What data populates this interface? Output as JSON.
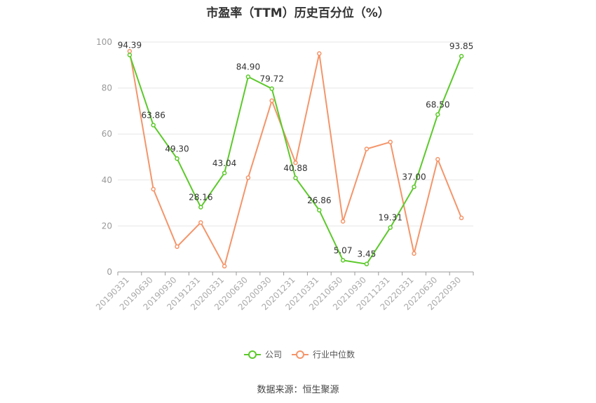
{
  "chart_data": {
    "type": "line",
    "title": "市盈率（TTM）历史百分位（%）",
    "categories": [
      "20190331",
      "20190630",
      "20190930",
      "20191231",
      "20200331",
      "20200630",
      "20200930",
      "20201231",
      "20210331",
      "20210630",
      "20210930",
      "20211231",
      "20220331",
      "20220630",
      "20220930"
    ],
    "series": [
      {
        "name": "公司",
        "color": "#5cc92b",
        "values": [
          94.39,
          63.86,
          49.3,
          28.16,
          43.04,
          84.9,
          79.72,
          40.88,
          26.86,
          5.07,
          3.45,
          19.31,
          37.0,
          68.5,
          93.85
        ],
        "labels": [
          "94.39",
          "63.86",
          "49.30",
          "28.16",
          "43.04",
          "84.90",
          "79.72",
          "40.88",
          "26.86",
          "5.07",
          "3.45",
          "19.31",
          "37.00",
          "68.50",
          "93.85"
        ]
      },
      {
        "name": "行业中位数",
        "color": "#f4956a",
        "values": [
          96,
          36,
          11,
          21.5,
          2.5,
          41,
          74.5,
          47.5,
          95,
          22,
          53.5,
          56.5,
          8,
          49,
          23.5
        ]
      }
    ],
    "ylim": [
      0,
      100
    ],
    "yticks": [
      0,
      20,
      40,
      60,
      80,
      100
    ],
    "grid": true,
    "legend": "bottom-center"
  },
  "source_label": "数据来源：恒生聚源"
}
